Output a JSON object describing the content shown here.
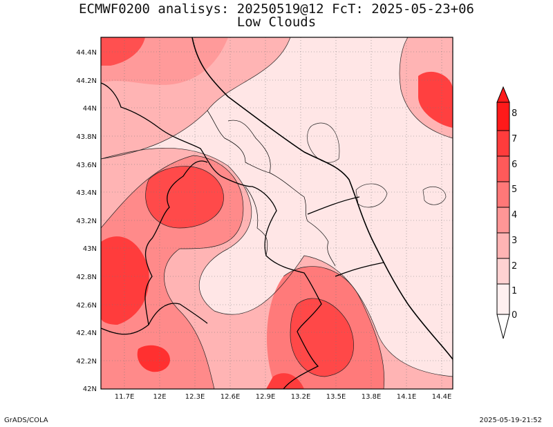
{
  "header": {
    "title_line1": "ECMWF0200 analisys: 20250519@12 FcT: 2025-05-23+06",
    "title_line2": "Low Clouds"
  },
  "footer": {
    "left": "GrADS/COLA",
    "right": "2025-05-19-21:52"
  },
  "map": {
    "lon_range": [
      11.5,
      14.5
    ],
    "lat_range": [
      42.0,
      44.5
    ],
    "lon_ticks": [
      "11.7E",
      "12E",
      "12.3E",
      "12.6E",
      "12.9E",
      "13.2E",
      "13.5E",
      "13.8E",
      "14.1E",
      "14.4E"
    ],
    "lat_ticks": [
      "44.4N",
      "44.2N",
      "44N",
      "43.8N",
      "43.6N",
      "43.4N",
      "43.2N",
      "43N",
      "42.8N",
      "42.6N",
      "42.4N",
      "42.2N",
      "42N"
    ],
    "grid": "dotted"
  },
  "colorbar": {
    "levels": [
      "8",
      "7",
      "6",
      "5",
      "4",
      "3",
      "2",
      "1",
      "0"
    ],
    "colors": [
      "#ff1a1a",
      "#ff3c3c",
      "#ff5a5a",
      "#ff7878",
      "#ff9696",
      "#ffb4b4",
      "#ffd2d2",
      "#fff0f0"
    ]
  },
  "colors": {
    "land_low": "#ffe4e4",
    "land_mid": "#ff9a9a",
    "land_high": "#ff4646",
    "peak": "#ff1e1e",
    "border": "#000000"
  }
}
